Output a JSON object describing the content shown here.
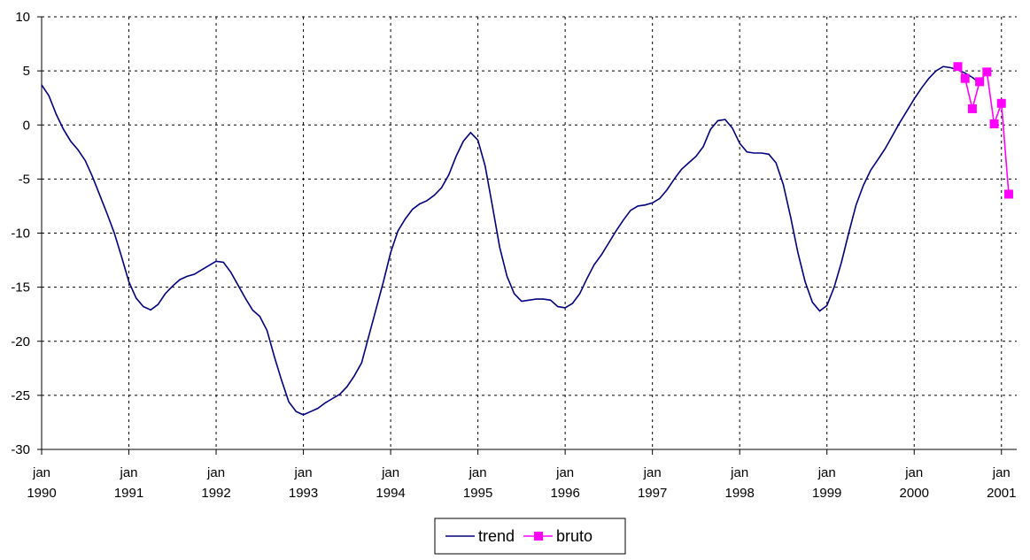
{
  "chart_data": {
    "type": "line",
    "x": [
      "1990-01",
      "1990-02",
      "1990-03",
      "1990-04",
      "1990-05",
      "1990-06",
      "1990-07",
      "1990-08",
      "1990-09",
      "1990-10",
      "1990-11",
      "1990-12",
      "1991-01",
      "1991-02",
      "1991-03",
      "1991-04",
      "1991-05",
      "1991-06",
      "1991-07",
      "1991-08",
      "1991-09",
      "1991-10",
      "1991-11",
      "1991-12",
      "1992-01",
      "1992-02",
      "1992-03",
      "1992-04",
      "1992-05",
      "1992-06",
      "1992-07",
      "1992-08",
      "1992-09",
      "1992-10",
      "1992-11",
      "1992-12",
      "1993-01",
      "1993-02",
      "1993-03",
      "1993-04",
      "1993-05",
      "1993-06",
      "1993-07",
      "1993-08",
      "1993-09",
      "1993-10",
      "1993-11",
      "1993-12",
      "1994-01",
      "1994-02",
      "1994-03",
      "1994-04",
      "1994-05",
      "1994-06",
      "1994-07",
      "1994-08",
      "1994-09",
      "1994-10",
      "1994-11",
      "1994-12",
      "1995-01",
      "1995-02",
      "1995-03",
      "1995-04",
      "1995-05",
      "1995-06",
      "1995-07",
      "1995-08",
      "1995-09",
      "1995-10",
      "1995-11",
      "1995-12",
      "1996-01",
      "1996-02",
      "1996-03",
      "1996-04",
      "1996-05",
      "1996-06",
      "1996-07",
      "1996-08",
      "1996-09",
      "1996-10",
      "1996-11",
      "1996-12",
      "1997-01",
      "1997-02",
      "1997-03",
      "1997-04",
      "1997-05",
      "1997-06",
      "1997-07",
      "1997-08",
      "1997-09",
      "1997-10",
      "1997-11",
      "1997-12",
      "1998-01",
      "1998-02",
      "1998-03",
      "1998-04",
      "1998-05",
      "1998-06",
      "1998-07",
      "1998-08",
      "1998-09",
      "1998-10",
      "1998-11",
      "1998-12",
      "1999-01",
      "1999-02",
      "1999-03",
      "1999-04",
      "1999-05",
      "1999-06",
      "1999-07",
      "1999-08",
      "1999-09",
      "1999-10",
      "1999-11",
      "1999-12",
      "2000-01",
      "2000-02",
      "2000-03",
      "2000-04",
      "2000-05",
      "2000-06",
      "2000-07",
      "2000-08",
      "2000-09",
      "2000-10",
      "2000-11",
      "2000-12",
      "2001-01",
      "2001-02"
    ],
    "series": [
      {
        "name": "trend",
        "color": "#000080",
        "values": [
          3.7,
          2.7,
          1.0,
          -0.4,
          -1.5,
          -2.3,
          -3.3,
          -4.8,
          -6.5,
          -8.2,
          -10,
          -12.2,
          -14.5,
          -16,
          -16.8,
          -17.1,
          -16.6,
          -15.6,
          -14.9,
          -14.3,
          -14.0,
          -13.8,
          -13.4,
          -13.0,
          -12.6,
          -12.7,
          -13.6,
          -14.8,
          -16.0,
          -17.1,
          -17.7,
          -19.0,
          -21.4,
          -23.6,
          -25.6,
          -26.5,
          -26.8,
          -26.5,
          -26.2,
          -25.7,
          -25.3,
          -24.9,
          -24.2,
          -23.2,
          -22.0,
          -19.5,
          -17.0,
          -14.5,
          -11.8,
          -9.8,
          -8.7,
          -7.8,
          -7.3,
          -7.0,
          -6.5,
          -5.8,
          -4.6,
          -2.9,
          -1.5,
          -0.7,
          -1.4,
          -3.8,
          -7.5,
          -11.3,
          -14.0,
          -15.6,
          -16.3,
          -16.2,
          -16.1,
          -16.1,
          -16.2,
          -16.8,
          -16.9,
          -16.5,
          -15.6,
          -14.2,
          -12.9,
          -12.0,
          -10.9,
          -9.8,
          -8.8,
          -7.9,
          -7.5,
          -7.4,
          -7.2,
          -6.8,
          -6.0,
          -5.0,
          -4.1,
          -3.5,
          -2.9,
          -2.0,
          -0.4,
          0.4,
          0.5,
          -0.3,
          -1.7,
          -2.5,
          -2.6,
          -2.6,
          -2.7,
          -3.5,
          -5.5,
          -8.5,
          -11.8,
          -14.5,
          -16.4,
          -17.2,
          -16.7,
          -15.0,
          -12.7,
          -10.0,
          -7.4,
          -5.6,
          -4.2,
          -3.2,
          -2.2,
          -1.0,
          0.2,
          1.3,
          2.4,
          3.4,
          4.3,
          5.0,
          5.4,
          5.3,
          5.1,
          4.8,
          4.4,
          3.9,
          null,
          null,
          null,
          null
        ]
      },
      {
        "name": "bruto",
        "color": "#ff00ff",
        "values": [
          null,
          null,
          null,
          null,
          null,
          null,
          null,
          null,
          null,
          null,
          null,
          null,
          null,
          null,
          null,
          null,
          null,
          null,
          null,
          null,
          null,
          null,
          null,
          null,
          null,
          null,
          null,
          null,
          null,
          null,
          null,
          null,
          null,
          null,
          null,
          null,
          null,
          null,
          null,
          null,
          null,
          null,
          null,
          null,
          null,
          null,
          null,
          null,
          null,
          null,
          null,
          null,
          null,
          null,
          null,
          null,
          null,
          null,
          null,
          null,
          null,
          null,
          null,
          null,
          null,
          null,
          null,
          null,
          null,
          null,
          null,
          null,
          null,
          null,
          null,
          null,
          null,
          null,
          null,
          null,
          null,
          null,
          null,
          null,
          null,
          null,
          null,
          null,
          null,
          null,
          null,
          null,
          null,
          null,
          null,
          null,
          null,
          null,
          null,
          null,
          null,
          null,
          null,
          null,
          null,
          null,
          null,
          null,
          null,
          null,
          null,
          null,
          null,
          null,
          null,
          null,
          null,
          null,
          null,
          null,
          null,
          null,
          null,
          null,
          null,
          null,
          5.4,
          4.3,
          1.5,
          4.0,
          4.9,
          0.1,
          2.0,
          -6.4
        ]
      }
    ],
    "ylim": [
      -30,
      10
    ],
    "yticks": [
      -30,
      -25,
      -20,
      -15,
      -10,
      -5,
      0,
      5,
      10
    ],
    "xticks": [
      {
        "value": "1990-01",
        "label": "jan\n1990"
      },
      {
        "value": "1991-01",
        "label": "jan\n1991"
      },
      {
        "value": "1992-01",
        "label": "jan\n1992"
      },
      {
        "value": "1993-01",
        "label": "jan\n1993"
      },
      {
        "value": "1994-01",
        "label": "jan\n1994"
      },
      {
        "value": "1995-01",
        "label": "jan\n1995"
      },
      {
        "value": "1996-01",
        "label": "jan\n1996"
      },
      {
        "value": "1997-01",
        "label": "jan\n1997"
      },
      {
        "value": "1998-01",
        "label": "jan\n1998"
      },
      {
        "value": "1999-01",
        "label": "jan\n1999"
      },
      {
        "value": "2000-01",
        "label": "jan\n2000"
      },
      {
        "value": "2001-01",
        "label": "jan\n2001"
      }
    ],
    "grid": true,
    "legend": "bottom"
  }
}
